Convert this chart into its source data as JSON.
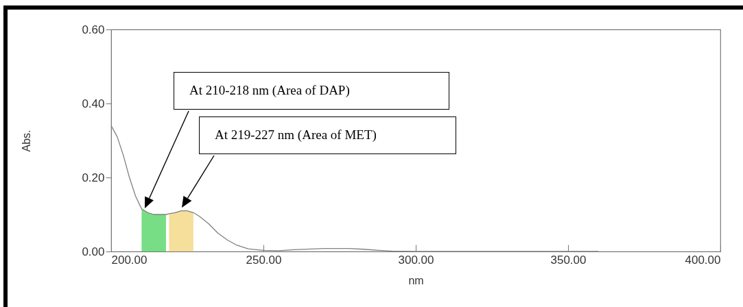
{
  "chart_data": {
    "type": "line",
    "xlabel": "nm",
    "ylabel": "Abs.",
    "x": [
      200,
      202,
      204,
      206,
      208,
      210,
      212,
      214,
      216,
      218,
      219,
      221,
      223,
      225,
      227,
      229,
      232,
      235,
      238,
      241,
      245,
      250,
      255,
      260,
      270,
      278,
      283,
      288,
      292,
      300,
      320,
      340,
      360
    ],
    "series": [
      {
        "color": "#808080",
        "values": [
          0.34,
          0.31,
          0.26,
          0.2,
          0.15,
          0.115,
          0.105,
          0.1,
          0.1,
          0.1,
          0.102,
          0.105,
          0.11,
          0.11,
          0.105,
          0.095,
          0.075,
          0.05,
          0.032,
          0.018,
          0.007,
          0.003,
          0.002,
          0.005,
          0.008,
          0.008,
          0.006,
          0.003,
          0.001,
          0,
          0,
          0,
          0
        ]
      }
    ],
    "xlim": [
      200,
      400
    ],
    "xticks": [
      {
        "value": 200,
        "label": "200.00"
      },
      {
        "value": 250,
        "label": "250.00"
      },
      {
        "value": 300,
        "label": "300.00"
      },
      {
        "value": 350,
        "label": "350.00"
      },
      {
        "value": 400,
        "label": "400.00"
      }
    ],
    "ylim": [
      0,
      0.6
    ],
    "yticks": [
      {
        "value": 0,
        "label": "0.00"
      },
      {
        "value": 0.2,
        "label": "0.20"
      },
      {
        "value": 0.4,
        "label": "0.40"
      },
      {
        "value": 0.6,
        "label": "0.60"
      }
    ],
    "grid": false,
    "marker": "none",
    "line_style": "solid",
    "bands": [
      {
        "axis": "x",
        "from": 210,
        "to": 218,
        "label": null,
        "color": "#5fd870"
      },
      {
        "axis": "x",
        "from": 219,
        "to": 227,
        "label": null,
        "color": "#f3d98a"
      }
    ],
    "annotations": [
      "At 210-218 nm (Area of DAP)",
      "At 219-227 nm (Area of MET)"
    ]
  }
}
